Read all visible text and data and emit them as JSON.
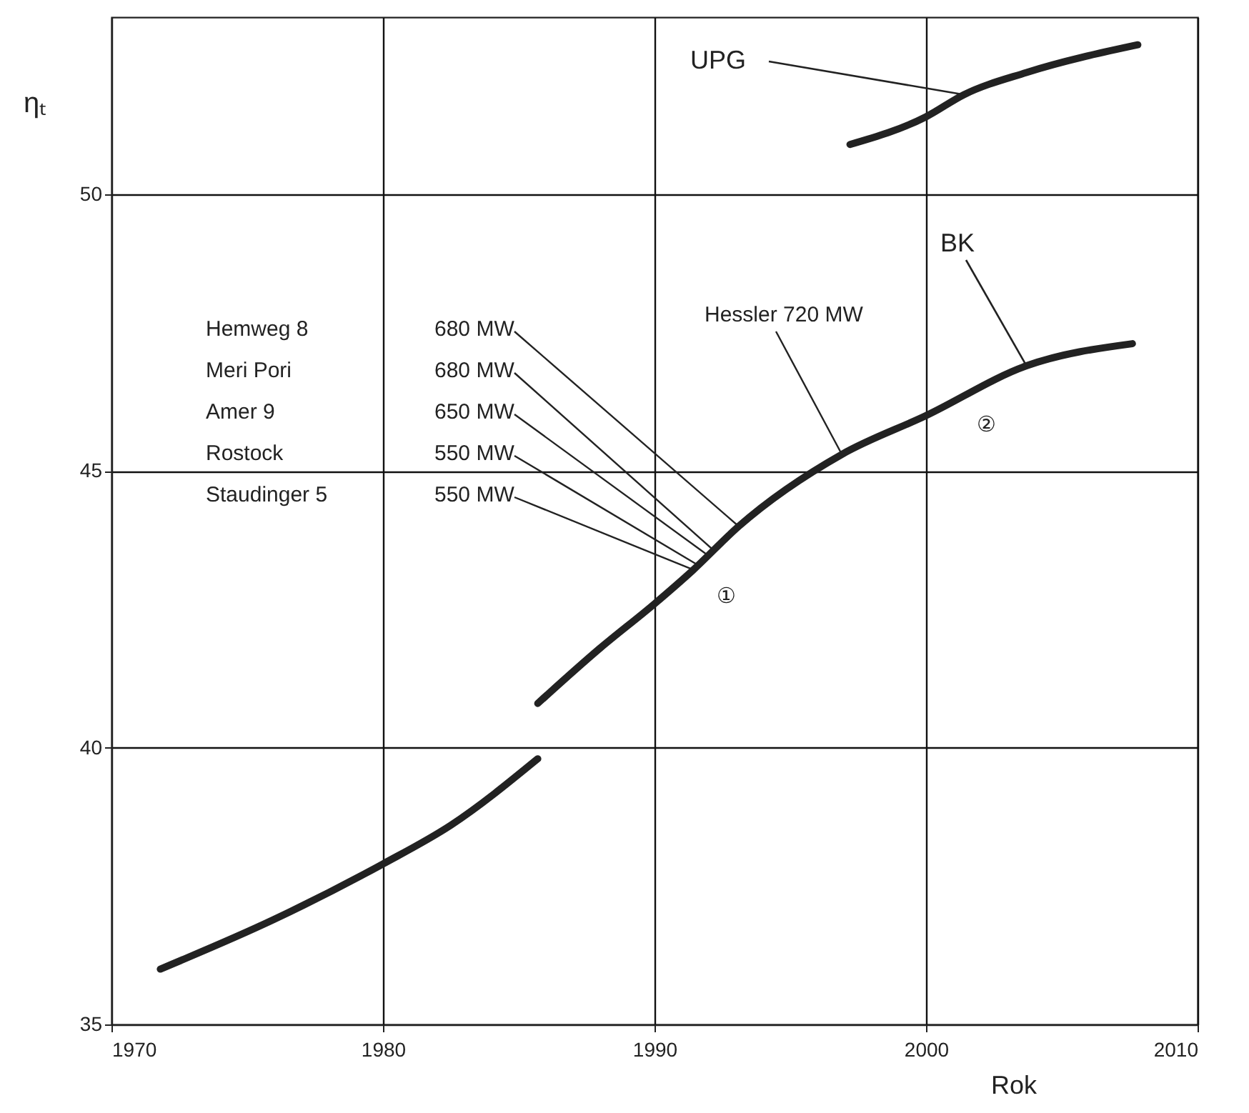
{
  "chart_data": {
    "type": "line",
    "xlabel": "Rok",
    "ylabel": "ηₜ",
    "xlim": [
      1970,
      2010
    ],
    "ylim": [
      35,
      53.2
    ],
    "xticks": [
      1970,
      1980,
      1990,
      2000,
      2010
    ],
    "yticks": [
      35,
      40,
      45,
      50
    ],
    "grid": true,
    "series": [
      {
        "color": "#222222",
        "x": [
          1971.8,
          1976,
          1980,
          1982.5,
          1985.7
        ],
        "values": [
          36.0,
          36.9,
          37.9,
          38.6,
          39.8
        ]
      },
      {
        "name": "BK",
        "color": "#222222",
        "x": [
          1985.7,
          1988,
          1990,
          1991.4,
          1993.1,
          1996.9,
          2000,
          2003.7,
          2007.6
        ],
        "values": [
          40.8,
          41.8,
          42.6,
          43.2,
          44.0,
          45.3,
          46.0,
          46.9,
          47.3
        ]
      },
      {
        "name": "UPG",
        "color": "#222222",
        "x": [
          1997.2,
          2000,
          2001.4,
          2003.7,
          2007.8
        ],
        "values": [
          50.9,
          51.4,
          51.8,
          52.2,
          52.7
        ]
      }
    ],
    "annotations": [
      "Hemweg 8",
      "Meri Pori",
      "Amer 9",
      "Rostock",
      "Staudinger 5",
      {
        "text": "680 MW",
        "x": 1993.1,
        "y": 44.0
      },
      {
        "text": "680 MW",
        "x": 1992.1,
        "y": 43.6
      },
      {
        "text": "650 MW",
        "x": 1991.9,
        "y": 43.5
      },
      {
        "text": "550 MW",
        "x": 1991.6,
        "y": 43.3
      },
      {
        "text": "550 MW",
        "x": 1991.5,
        "y": 43.2
      },
      {
        "text": "Hessler 720 MW",
        "x": 1996.9,
        "y": 45.3
      },
      "①",
      "②"
    ]
  }
}
